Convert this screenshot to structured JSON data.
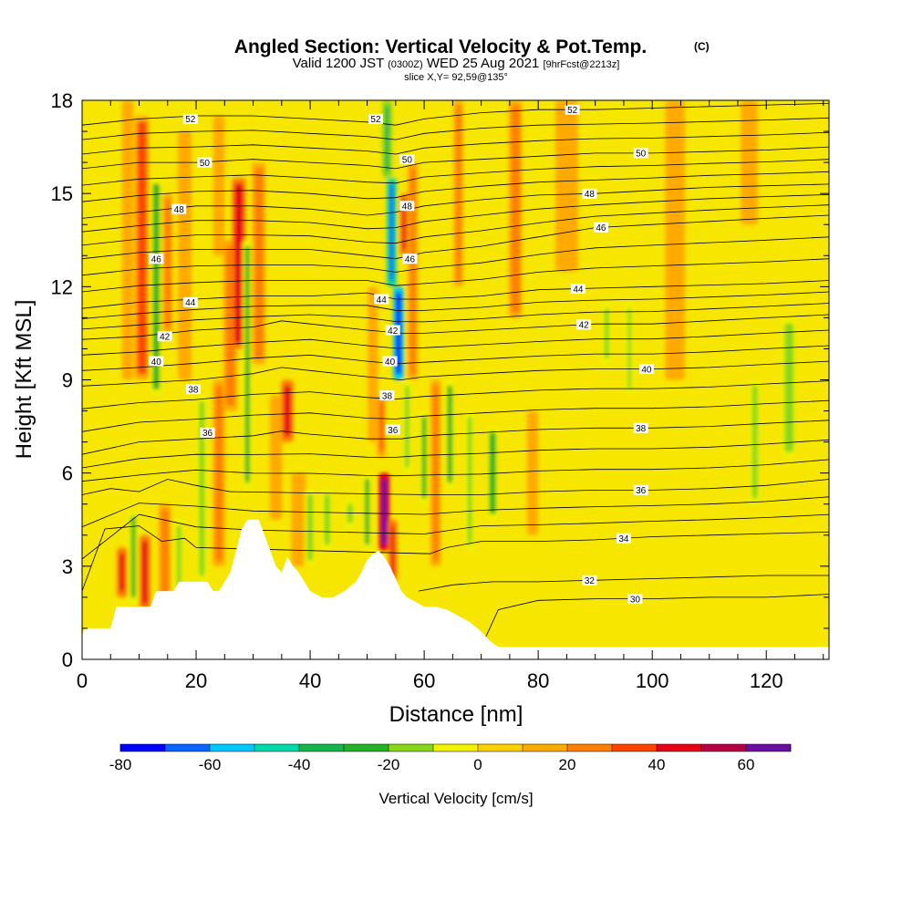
{
  "chart_data": {
    "type": "heatmap",
    "title": "Angled Section: Vertical Velocity & Pot.Temp.",
    "title_mark": "(C)",
    "subtitle": {
      "valid_prefix": "Valid 1200 JST",
      "valid_utc": "(0300Z)",
      "valid_date": "WED 25 Aug 2021",
      "forecast": "[9hrFcst@2213z]",
      "slice": "slice X,Y= 92,59@135°"
    },
    "xlabel": "Distance [nm]",
    "ylabel": "Height [Kft MSL]",
    "xlim": [
      0,
      131
    ],
    "ylim": [
      0,
      18
    ],
    "x_ticks": [
      0,
      20,
      40,
      60,
      80,
      100,
      120
    ],
    "x_tick_labels": [
      "0",
      "20",
      "40",
      "60",
      "80",
      "100",
      "120"
    ],
    "y_ticks": [
      0,
      3,
      6,
      9,
      12,
      15,
      18
    ],
    "y_tick_labels": [
      "0",
      "3",
      "6",
      "9",
      "12",
      "15",
      "18"
    ],
    "colorbar": {
      "label": "Vertical Velocity [cm/s]",
      "levels": [
        -80,
        -70,
        -60,
        -50,
        -40,
        -30,
        -20,
        -10,
        0,
        10,
        20,
        30,
        40,
        50,
        60,
        70
      ],
      "tick_values": [
        -80,
        -60,
        -40,
        -20,
        0,
        20,
        40,
        60
      ],
      "tick_labels": [
        "-80",
        "-60",
        "-40",
        "-20",
        "0",
        "20",
        "40",
        "60"
      ],
      "colors": [
        "#0000ff",
        "#0a64ff",
        "#00c8ff",
        "#00d9a8",
        "#12b64c",
        "#22b224",
        "#88d61a",
        "#f2f200",
        "#ffd000",
        "#ffaa00",
        "#ff7e00",
        "#ff4400",
        "#e60018",
        "#b80046",
        "#6a0fa0"
      ]
    },
    "background_value": 5,
    "velocity_features": [
      {
        "x": 7,
        "y0": 2.0,
        "y1": 3.6,
        "w": 0.9,
        "v": 45
      },
      {
        "x": 11,
        "y0": 1.6,
        "y1": 4.0,
        "w": 1.0,
        "v": 40
      },
      {
        "x": 9,
        "y0": 1.8,
        "y1": 4.8,
        "w": 0.8,
        "v": -25
      },
      {
        "x": 14.5,
        "y0": 1.8,
        "y1": 5.0,
        "w": 1.2,
        "v": 25
      },
      {
        "x": 17,
        "y0": 2.0,
        "y1": 4.5,
        "w": 0.8,
        "v": -20
      },
      {
        "x": 10.5,
        "y0": 9.0,
        "y1": 17.5,
        "w": 1.6,
        "v": 30
      },
      {
        "x": 13,
        "y0": 8.5,
        "y1": 15.5,
        "w": 1.2,
        "v": -25
      },
      {
        "x": 15,
        "y0": 10.5,
        "y1": 15.0,
        "w": 0.9,
        "v": 20
      },
      {
        "x": 8,
        "y0": 9.0,
        "y1": 18.0,
        "w": 1.0,
        "v": 15
      },
      {
        "x": 18,
        "y0": 9.0,
        "y1": 17.0,
        "w": 1.4,
        "v": 15
      },
      {
        "x": 21,
        "y0": 2.5,
        "y1": 8.5,
        "w": 1.0,
        "v": -15
      },
      {
        "x": 24,
        "y0": 3.0,
        "y1": 9.0,
        "w": 1.2,
        "v": 20
      },
      {
        "x": 24,
        "y0": 13.0,
        "y1": 17.5,
        "w": 1.0,
        "v": 15
      },
      {
        "x": 26,
        "y0": 8.0,
        "y1": 13.5,
        "w": 1.5,
        "v": 20
      },
      {
        "x": 27.5,
        "y0": 10.0,
        "y1": 15.5,
        "w": 1.5,
        "v": 40
      },
      {
        "x": 29,
        "y0": 5.5,
        "y1": 13.5,
        "w": 0.8,
        "v": -25
      },
      {
        "x": 31,
        "y0": 9.5,
        "y1": 16.0,
        "w": 1.4,
        "v": 25
      },
      {
        "x": 34,
        "y0": 4.5,
        "y1": 8.5,
        "w": 1.2,
        "v": 15
      },
      {
        "x": 36,
        "y0": 7.0,
        "y1": 9.0,
        "w": 1.2,
        "v": 40
      },
      {
        "x": 38,
        "y0": 3.0,
        "y1": 6.0,
        "w": 1.6,
        "v": 15
      },
      {
        "x": 40,
        "y0": 3.0,
        "y1": 5.5,
        "w": 1.0,
        "v": -20
      },
      {
        "x": 43,
        "y0": 3.5,
        "y1": 5.5,
        "w": 1.0,
        "v": -15
      },
      {
        "x": 47,
        "y0": 4.2,
        "y1": 5.2,
        "w": 1.0,
        "v": -20
      },
      {
        "x": 50,
        "y0": 3.5,
        "y1": 6.0,
        "w": 0.8,
        "v": -25
      },
      {
        "x": 51,
        "y0": 7.0,
        "y1": 12.0,
        "w": 0.8,
        "v": 15
      },
      {
        "x": 52.5,
        "y0": 6.5,
        "y1": 8.5,
        "w": 0.6,
        "v": 35
      },
      {
        "x": 53,
        "y0": 3.5,
        "y1": 6.0,
        "w": 0.9,
        "v": 65
      },
      {
        "x": 54.5,
        "y0": 2.5,
        "y1": 4.5,
        "w": 0.6,
        "v": 40
      },
      {
        "x": 55.5,
        "y0": 9.0,
        "y1": 12.0,
        "w": 0.9,
        "v": -75
      },
      {
        "x": 54.3,
        "y0": 12.0,
        "y1": 15.5,
        "w": 0.7,
        "v": -65
      },
      {
        "x": 53.5,
        "y0": 15.5,
        "y1": 18.0,
        "w": 0.7,
        "v": -40
      },
      {
        "x": 56.5,
        "y0": 13.0,
        "y1": 15.0,
        "w": 0.6,
        "v": 40
      },
      {
        "x": 57,
        "y0": 6.0,
        "y1": 9.0,
        "w": 0.8,
        "v": -20
      },
      {
        "x": 58,
        "y0": 9.0,
        "y1": 16.0,
        "w": 0.9,
        "v": 25
      },
      {
        "x": 60,
        "y0": 5.0,
        "y1": 8.0,
        "w": 0.8,
        "v": -25
      },
      {
        "x": 62,
        "y0": 3.0,
        "y1": 9.0,
        "w": 0.9,
        "v": 20
      },
      {
        "x": 64.5,
        "y0": 5.5,
        "y1": 9.0,
        "w": 0.9,
        "v": -25
      },
      {
        "x": 66,
        "y0": 12.0,
        "y1": 18.0,
        "w": 0.8,
        "v": 25
      },
      {
        "x": 68,
        "y0": 3.5,
        "y1": 8.0,
        "w": 0.8,
        "v": -20
      },
      {
        "x": 72,
        "y0": 4.5,
        "y1": 7.5,
        "w": 1.2,
        "v": -25
      },
      {
        "x": 76,
        "y0": 11.0,
        "y1": 18.0,
        "w": 1.4,
        "v": 25
      },
      {
        "x": 79,
        "y0": 4.0,
        "y1": 8.0,
        "w": 1.0,
        "v": 15
      },
      {
        "x": 85,
        "y0": 12.5,
        "y1": 18.0,
        "w": 3.0,
        "v": 15
      },
      {
        "x": 92,
        "y0": 9.5,
        "y1": 11.5,
        "w": 0.8,
        "v": -15
      },
      {
        "x": 96,
        "y0": 8.5,
        "y1": 11.5,
        "w": 0.6,
        "v": -15
      },
      {
        "x": 104,
        "y0": 9.0,
        "y1": 18.0,
        "w": 2.5,
        "v": 12
      },
      {
        "x": 117,
        "y0": 14.0,
        "y1": 18.0,
        "w": 2.0,
        "v": 12
      },
      {
        "x": 118,
        "y0": 5.0,
        "y1": 9.0,
        "w": 1.0,
        "v": -15
      },
      {
        "x": 124,
        "y0": 6.5,
        "y1": 11.0,
        "w": 1.6,
        "v": -20
      }
    ],
    "terrain": {
      "x": [
        0,
        0.5,
        1,
        5,
        6,
        9,
        12,
        13,
        15,
        16,
        17,
        18,
        20,
        22,
        23,
        24,
        25,
        26,
        27,
        28,
        29,
        30,
        31,
        32,
        33,
        34,
        35,
        36,
        37,
        38,
        39,
        40,
        42,
        44,
        46,
        48,
        49,
        50,
        51,
        52,
        53,
        54,
        55,
        56,
        57,
        58,
        59,
        60,
        62,
        64,
        66,
        68,
        70,
        71.5,
        73,
        131
      ],
      "y": [
        0.8,
        1.0,
        1.0,
        1.0,
        1.7,
        1.7,
        1.7,
        2.2,
        2.2,
        2.2,
        2.5,
        2.5,
        2.5,
        2.5,
        2.2,
        2.2,
        2.5,
        2.8,
        3.5,
        4.2,
        4.5,
        4.5,
        4.5,
        4.0,
        3.5,
        3.0,
        2.8,
        3.3,
        3.0,
        2.8,
        2.5,
        2.2,
        2.0,
        2.0,
        2.2,
        2.5,
        2.8,
        3.2,
        3.4,
        3.5,
        3.3,
        3.0,
        2.6,
        2.2,
        2.0,
        1.9,
        1.8,
        1.7,
        1.7,
        1.6,
        1.4,
        1.2,
        0.9,
        0.6,
        0.4,
        0.4
      ]
    },
    "contours": [
      {
        "level": 30,
        "label": "30",
        "x": [
          70,
          73,
          80,
          90,
          100,
          110,
          120,
          131
        ],
        "y": [
          0.4,
          1.6,
          1.9,
          1.95,
          1.95,
          2.0,
          2.0,
          2.1
        ],
        "label_x": 97
      },
      {
        "level": 32,
        "label": "32",
        "x": [
          59,
          65,
          72,
          80,
          90,
          100,
          110,
          120,
          131
        ],
        "y": [
          2.2,
          2.4,
          2.5,
          2.5,
          2.55,
          2.6,
          2.65,
          2.7,
          2.7
        ],
        "label_x": 89
      },
      {
        "level": 34,
        "label": "34",
        "x": [
          0,
          4,
          10,
          14,
          18,
          20,
          61,
          64,
          70,
          80,
          90,
          100,
          110,
          120,
          131
        ],
        "y": [
          2.2,
          4.2,
          4.3,
          3.8,
          3.9,
          3.6,
          3.4,
          3.6,
          3.8,
          3.8,
          3.85,
          3.95,
          4.0,
          4.05,
          4.1
        ],
        "label_x": 95
      },
      {
        "level": 36,
        "label": "36",
        "x": [
          0,
          5,
          10,
          15,
          20,
          26,
          61,
          65,
          70,
          80,
          90,
          100,
          110,
          120,
          131
        ],
        "y": [
          5.3,
          5.5,
          5.4,
          5.8,
          5.6,
          5.4,
          5.3,
          5.3,
          5.3,
          5.4,
          5.45,
          5.45,
          5.5,
          5.6,
          5.8
        ],
        "label_x": 98
      },
      {
        "level": 38,
        "label": "38",
        "x": [
          0,
          10,
          20,
          30,
          35,
          40,
          50,
          56,
          60,
          70,
          80,
          90,
          100,
          110,
          120,
          131
        ],
        "y": [
          6.6,
          7.0,
          7.1,
          7.2,
          7.35,
          7.25,
          7.1,
          7.1,
          7.2,
          7.3,
          7.4,
          7.45,
          7.45,
          7.5,
          7.6,
          7.7
        ],
        "label_x": 98
      },
      {
        "level": 40,
        "label": "40",
        "x": [
          0,
          10,
          20,
          30,
          35,
          40,
          50,
          56,
          60,
          70,
          80,
          90,
          100,
          110,
          120,
          131
        ],
        "y": [
          8.8,
          8.9,
          9.0,
          9.2,
          9.4,
          9.3,
          9.1,
          9.0,
          9.1,
          9.2,
          9.3,
          9.35,
          9.35,
          9.4,
          9.5,
          9.6
        ],
        "label_x": 99
      },
      {
        "level": 42,
        "label": "42",
        "x": [
          0,
          10,
          20,
          30,
          35,
          40,
          50,
          56,
          60,
          70,
          80,
          90,
          100,
          110,
          120,
          131
        ],
        "y": [
          10.3,
          10.4,
          10.6,
          10.7,
          10.9,
          10.8,
          10.6,
          10.5,
          10.5,
          10.6,
          10.7,
          10.8,
          10.8,
          10.9,
          11.0,
          11.1
        ],
        "label_x": 88
      },
      {
        "level": 44,
        "label": "44",
        "x": [
          0,
          10,
          20,
          30,
          40,
          50,
          55,
          60,
          70,
          80,
          90,
          100,
          110,
          120,
          131
        ],
        "y": [
          11.3,
          11.5,
          11.6,
          11.7,
          11.7,
          11.8,
          11.6,
          11.6,
          11.7,
          11.9,
          11.95,
          12.0,
          12.05,
          12.1,
          12.2
        ],
        "label_x": 87
      },
      {
        "level": 46,
        "label": "46",
        "x": [
          0,
          10,
          20,
          30,
          40,
          50,
          55,
          60,
          70,
          80,
          90,
          100,
          110,
          120,
          131
        ],
        "y": [
          12.9,
          13.1,
          13.2,
          13.2,
          13.2,
          13.0,
          12.9,
          13.1,
          13.3,
          13.6,
          13.9,
          14.0,
          14.1,
          14.2,
          14.3
        ],
        "label_x": 91
      },
      {
        "level": 48,
        "label": "48",
        "x": [
          0,
          10,
          20,
          30,
          40,
          50,
          55,
          60,
          70,
          80,
          90,
          100,
          110,
          120,
          131
        ],
        "y": [
          14.2,
          14.4,
          14.6,
          14.6,
          14.5,
          14.3,
          14.4,
          14.6,
          14.8,
          14.95,
          15.0,
          15.1,
          15.2,
          15.25,
          15.3
        ],
        "label_x": 89
      },
      {
        "level": 50,
        "label": "50",
        "x": [
          0,
          10,
          20,
          30,
          40,
          50,
          55,
          60,
          70,
          80,
          90,
          100,
          110,
          120,
          131
        ],
        "y": [
          15.8,
          16.0,
          16.0,
          16.1,
          16.0,
          15.9,
          15.8,
          16.0,
          16.1,
          16.2,
          16.3,
          16.3,
          16.35,
          16.4,
          16.5
        ],
        "label_x": 98
      },
      {
        "level": 52,
        "label": "52",
        "x": [
          0,
          10,
          20,
          30,
          40,
          50,
          55,
          60,
          70,
          80,
          90,
          100,
          110,
          120,
          131
        ],
        "y": [
          17.2,
          17.4,
          17.5,
          17.5,
          17.4,
          17.3,
          17.2,
          17.4,
          17.6,
          17.7,
          17.7,
          17.75,
          17.8,
          17.85,
          17.9
        ],
        "label_x": 86
      }
    ],
    "contour_left_labels": [
      {
        "label": "52",
        "x": 19,
        "y": 17.4
      },
      {
        "label": "50",
        "x": 21.5,
        "y": 16.0
      },
      {
        "label": "48",
        "x": 17,
        "y": 14.5
      },
      {
        "label": "46",
        "x": 13,
        "y": 12.9
      },
      {
        "label": "44",
        "x": 19,
        "y": 11.5
      },
      {
        "label": "42",
        "x": 14.5,
        "y": 10.4
      },
      {
        "label": "40",
        "x": 13,
        "y": 9.6
      },
      {
        "label": "38",
        "x": 19.5,
        "y": 8.7
      },
      {
        "label": "36",
        "x": 22,
        "y": 7.3
      },
      {
        "label": "52",
        "x": 51.5,
        "y": 17.4
      },
      {
        "label": "50",
        "x": 57,
        "y": 16.1
      },
      {
        "label": "48",
        "x": 57,
        "y": 14.6
      },
      {
        "label": "46",
        "x": 57.5,
        "y": 12.9
      },
      {
        "label": "44",
        "x": 52.5,
        "y": 11.6
      },
      {
        "label": "42",
        "x": 54.5,
        "y": 10.6
      },
      {
        "label": "40",
        "x": 54,
        "y": 9.6
      },
      {
        "label": "38",
        "x": 53.5,
        "y": 8.5
      },
      {
        "label": "36",
        "x": 54.5,
        "y": 7.4
      }
    ]
  }
}
